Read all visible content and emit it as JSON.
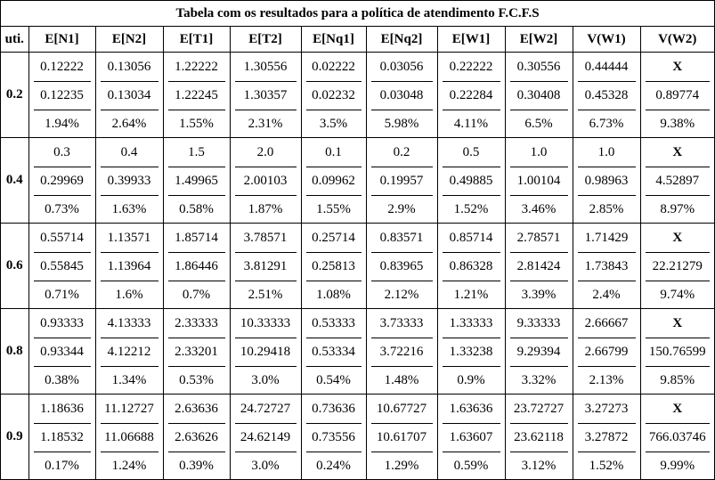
{
  "title": "Tabela com os resultados para a política de atendimento F.C.F.S",
  "headers": [
    "uti.",
    "E[N1]",
    "E[N2]",
    "E[T1]",
    "E[T2]",
    "E[Nq1]",
    "E[Nq2]",
    "E[W1]",
    "E[W2]",
    "V(W1)",
    "V(W2)"
  ],
  "rows": [
    {
      "util": "0.2",
      "cells": [
        [
          "0.12222",
          "0.12235",
          "1.94%"
        ],
        [
          "0.13056",
          "0.13034",
          "2.64%"
        ],
        [
          "1.22222",
          "1.22245",
          "1.55%"
        ],
        [
          "1.30556",
          "1.30357",
          "2.31%"
        ],
        [
          "0.02222",
          "0.02232",
          "3.5%"
        ],
        [
          "0.03056",
          "0.03048",
          "5.98%"
        ],
        [
          "0.22222",
          "0.22284",
          "4.11%"
        ],
        [
          "0.30556",
          "0.30408",
          "6.5%"
        ],
        [
          "0.44444",
          "0.45328",
          "6.73%"
        ],
        [
          "X",
          "0.89774",
          "9.38%"
        ]
      ]
    },
    {
      "util": "0.4",
      "cells": [
        [
          "0.3",
          "0.29969",
          "0.73%"
        ],
        [
          "0.4",
          "0.39933",
          "1.63%"
        ],
        [
          "1.5",
          "1.49965",
          "0.58%"
        ],
        [
          "2.0",
          "2.00103",
          "1.87%"
        ],
        [
          "0.1",
          "0.09962",
          "1.55%"
        ],
        [
          "0.2",
          "0.19957",
          "2.9%"
        ],
        [
          "0.5",
          "0.49885",
          "1.52%"
        ],
        [
          "1.0",
          "1.00104",
          "3.46%"
        ],
        [
          "1.0",
          "0.98963",
          "2.85%"
        ],
        [
          "X",
          "4.52897",
          "8.97%"
        ]
      ]
    },
    {
      "util": "0.6",
      "cells": [
        [
          "0.55714",
          "0.55845",
          "0.71%"
        ],
        [
          "1.13571",
          "1.13964",
          "1.6%"
        ],
        [
          "1.85714",
          "1.86446",
          "0.7%"
        ],
        [
          "3.78571",
          "3.81291",
          "2.51%"
        ],
        [
          "0.25714",
          "0.25813",
          "1.08%"
        ],
        [
          "0.83571",
          "0.83965",
          "2.12%"
        ],
        [
          "0.85714",
          "0.86328",
          "1.21%"
        ],
        [
          "2.78571",
          "2.81424",
          "3.39%"
        ],
        [
          "1.71429",
          "1.73843",
          "2.4%"
        ],
        [
          "X",
          "22.21279",
          "9.74%"
        ]
      ]
    },
    {
      "util": "0.8",
      "cells": [
        [
          "0.93333",
          "0.93344",
          "0.38%"
        ],
        [
          "4.13333",
          "4.12212",
          "1.34%"
        ],
        [
          "2.33333",
          "2.33201",
          "0.53%"
        ],
        [
          "10.33333",
          "10.29418",
          "3.0%"
        ],
        [
          "0.53333",
          "0.53334",
          "0.54%"
        ],
        [
          "3.73333",
          "3.72216",
          "1.48%"
        ],
        [
          "1.33333",
          "1.33238",
          "0.9%"
        ],
        [
          "9.33333",
          "9.29394",
          "3.32%"
        ],
        [
          "2.66667",
          "2.66799",
          "2.13%"
        ],
        [
          "X",
          "150.76599",
          "9.85%"
        ]
      ]
    },
    {
      "util": "0.9",
      "cells": [
        [
          "1.18636",
          "1.18532",
          "0.17%"
        ],
        [
          "11.12727",
          "11.06688",
          "1.24%"
        ],
        [
          "2.63636",
          "2.63626",
          "0.39%"
        ],
        [
          "24.72727",
          "24.62149",
          "3.0%"
        ],
        [
          "0.73636",
          "0.73556",
          "0.24%"
        ],
        [
          "10.67727",
          "10.61707",
          "1.29%"
        ],
        [
          "1.63636",
          "1.63607",
          "0.59%"
        ],
        [
          "23.72727",
          "23.62118",
          "3.12%"
        ],
        [
          "3.27273",
          "3.27872",
          "1.52%"
        ],
        [
          "X",
          "766.03746",
          "9.99%"
        ]
      ]
    }
  ]
}
